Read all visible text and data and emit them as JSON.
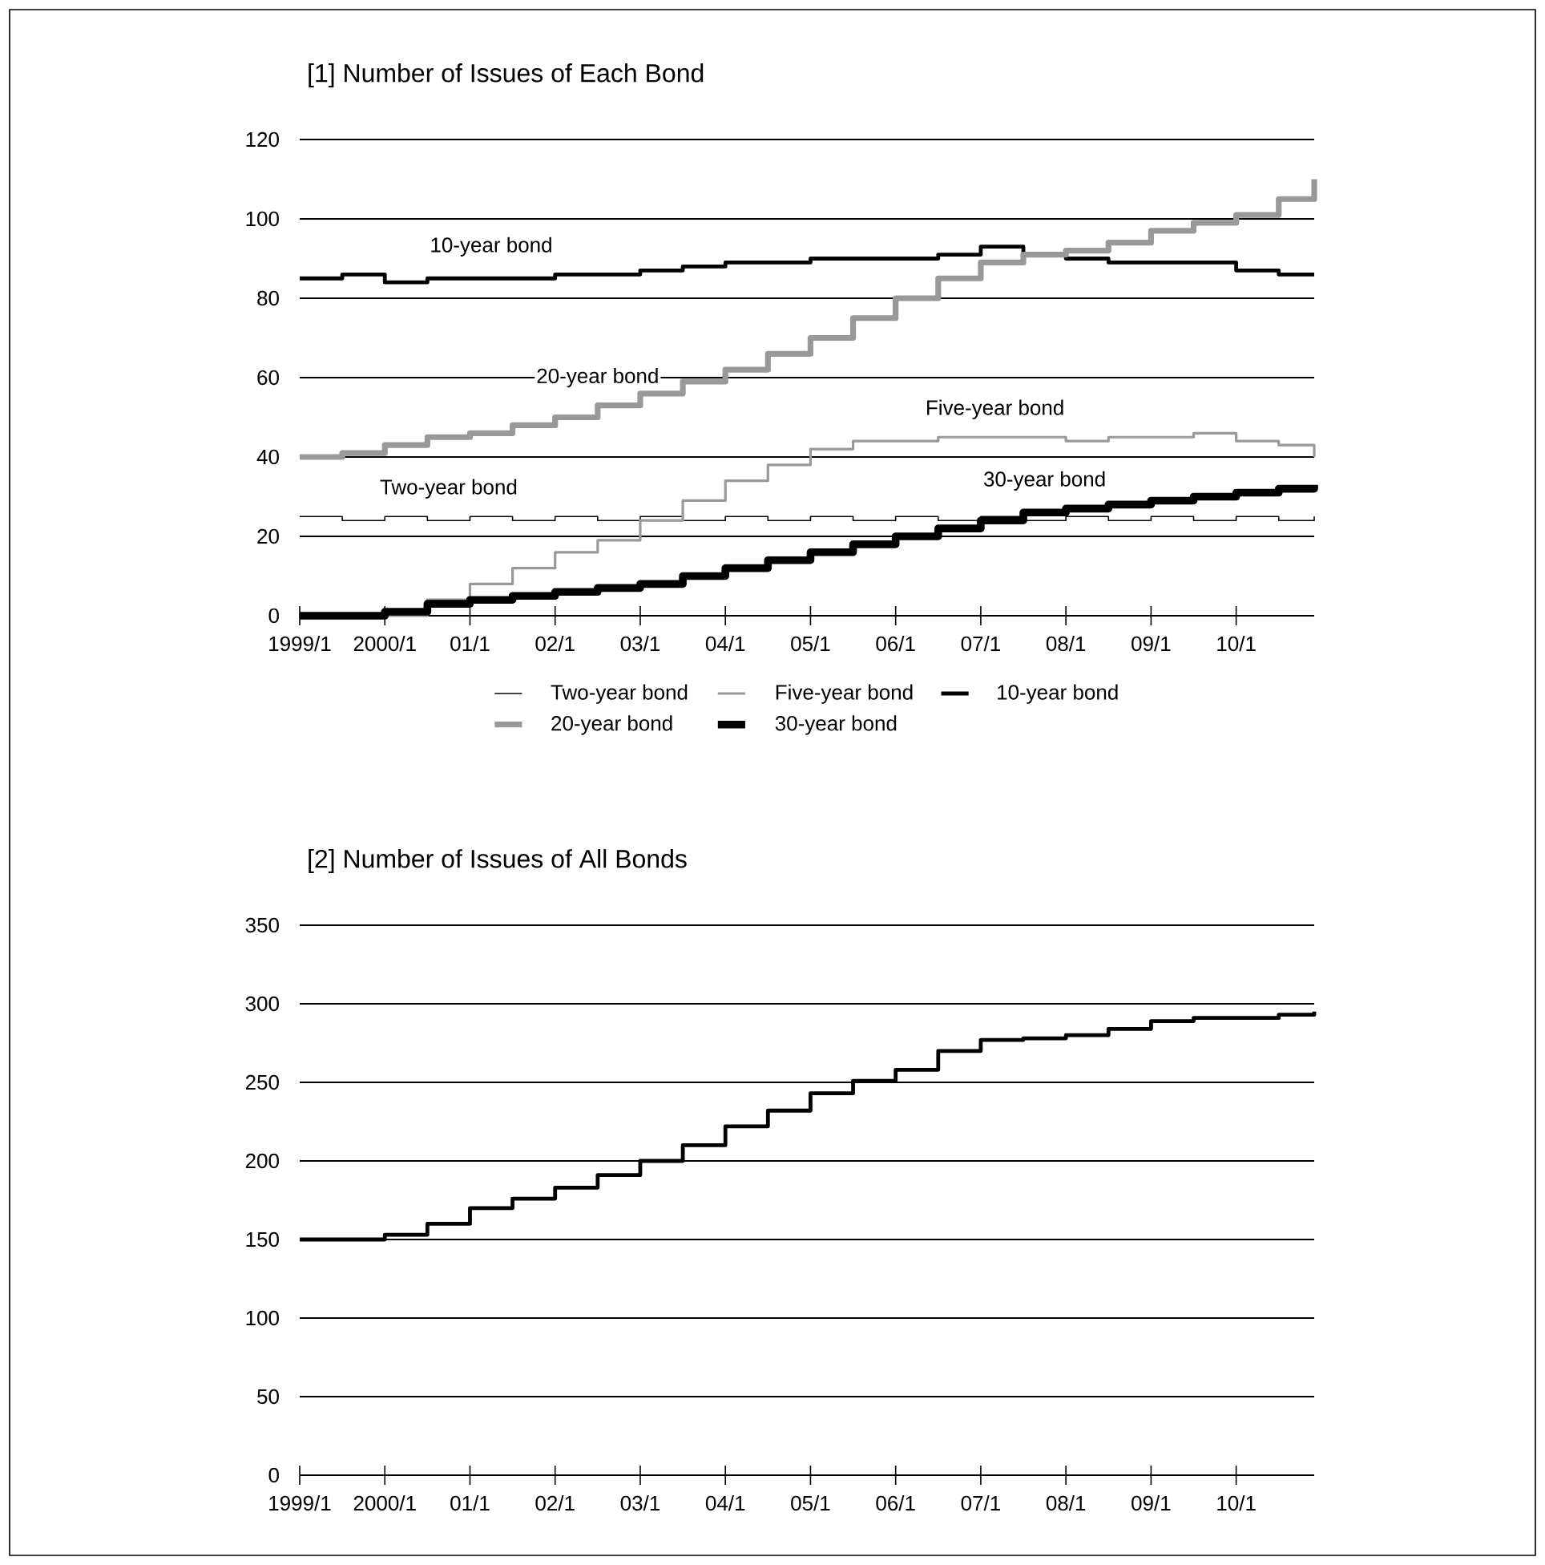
{
  "chart_data": [
    {
      "type": "step",
      "title": "[1] Number of Issues of Each Bond",
      "x": [
        "1999-01",
        "1999-07",
        "2000-01",
        "2000-07",
        "2001-01",
        "2001-07",
        "2002-01",
        "2002-07",
        "2003-01",
        "2003-07",
        "2004-01",
        "2004-07",
        "2005-01",
        "2005-07",
        "2006-01",
        "2006-07",
        "2007-01",
        "2007-07",
        "2008-01",
        "2008-07",
        "2009-01",
        "2009-07",
        "2010-01",
        "2010-07",
        "2010-12"
      ],
      "series": [
        {
          "name": "Two-year bond",
          "color": "#000000",
          "values": [
            25,
            24,
            25,
            24,
            25,
            24,
            25,
            24,
            25,
            24,
            25,
            24,
            25,
            24,
            25,
            24,
            25,
            24,
            25,
            24,
            25,
            24,
            25,
            24,
            25
          ]
        },
        {
          "name": "Five-year bond",
          "color": "#999999",
          "values": [
            0,
            0,
            0,
            4,
            8,
            12,
            16,
            19,
            24,
            29,
            34,
            38,
            42,
            44,
            44,
            45,
            45,
            45,
            44,
            45,
            45,
            46,
            44,
            43,
            40
          ]
        },
        {
          "name": "10-year bond",
          "color": "#000000",
          "values": [
            85,
            86,
            84,
            85,
            85,
            85,
            86,
            86,
            87,
            88,
            89,
            89,
            90,
            90,
            90,
            91,
            93,
            91,
            90,
            89,
            89,
            89,
            87,
            86,
            86
          ]
        },
        {
          "name": "20-year bond",
          "color": "#999999",
          "values": [
            40,
            41,
            43,
            45,
            46,
            48,
            50,
            53,
            56,
            59,
            62,
            66,
            70,
            75,
            80,
            85,
            89,
            91,
            92,
            94,
            97,
            99,
            101,
            105,
            110
          ]
        },
        {
          "name": "30-year bond",
          "color": "#000000",
          "values": [
            0,
            0,
            1,
            3,
            4,
            5,
            6,
            7,
            8,
            10,
            12,
            14,
            16,
            18,
            20,
            22,
            24,
            26,
            27,
            28,
            29,
            30,
            31,
            32,
            33
          ]
        }
      ],
      "xlim": [
        "1999-01",
        "2010-12"
      ],
      "xticks": [
        {
          "value": "1999-01",
          "label": "1999/1"
        },
        {
          "value": "2000-01",
          "label": "2000/1"
        },
        {
          "value": "2001-01",
          "label": "01/1"
        },
        {
          "value": "2002-01",
          "label": "02/1"
        },
        {
          "value": "2003-01",
          "label": "03/1"
        },
        {
          "value": "2004-01",
          "label": "04/1"
        },
        {
          "value": "2005-01",
          "label": "05/1"
        },
        {
          "value": "2006-01",
          "label": "06/1"
        },
        {
          "value": "2007-01",
          "label": "07/1"
        },
        {
          "value": "2008-01",
          "label": "08/1"
        },
        {
          "value": "2009-01",
          "label": "09/1"
        },
        {
          "value": "2010-01",
          "label": "10/1"
        }
      ],
      "ylim": [
        0,
        120
      ],
      "yticks": [
        0,
        20,
        40,
        60,
        80,
        100,
        120
      ],
      "grid": "y",
      "legend": "bottom",
      "annotations": [
        {
          "text": "10-year bond",
          "x": "2001-04",
          "y": 86
        },
        {
          "text": "20-year bond",
          "x": "2002-07",
          "y": 53
        },
        {
          "text": "Two-year bond",
          "x": "2000-10",
          "y": 25
        },
        {
          "text": "Five-year bond",
          "x": "2007-03",
          "y": 45
        },
        {
          "text": "30-year bond",
          "x": "2007-10",
          "y": 27
        }
      ]
    },
    {
      "type": "step",
      "title": "[2] Number of Issues of All Bonds",
      "x": [
        "1999-01",
        "1999-07",
        "2000-01",
        "2000-07",
        "2001-01",
        "2001-07",
        "2002-01",
        "2002-07",
        "2003-01",
        "2003-07",
        "2004-01",
        "2004-07",
        "2005-01",
        "2005-07",
        "2006-01",
        "2006-07",
        "2007-01",
        "2007-07",
        "2008-01",
        "2008-07",
        "2009-01",
        "2009-07",
        "2010-01",
        "2010-07",
        "2010-12"
      ],
      "series": [
        {
          "color": "#000000",
          "values": [
            150,
            150,
            153,
            160,
            170,
            176,
            183,
            191,
            200,
            210,
            222,
            232,
            243,
            251,
            258,
            270,
            277,
            278,
            280,
            284,
            289,
            291,
            291,
            293,
            295
          ]
        }
      ],
      "xlim": [
        "1999-01",
        "2010-12"
      ],
      "xticks": [
        {
          "value": "1999-01",
          "label": "1999/1"
        },
        {
          "value": "2000-01",
          "label": "2000/1"
        },
        {
          "value": "2001-01",
          "label": "01/1"
        },
        {
          "value": "2002-01",
          "label": "02/1"
        },
        {
          "value": "2003-01",
          "label": "03/1"
        },
        {
          "value": "2004-01",
          "label": "04/1"
        },
        {
          "value": "2005-01",
          "label": "05/1"
        },
        {
          "value": "2006-01",
          "label": "06/1"
        },
        {
          "value": "2007-01",
          "label": "07/1"
        },
        {
          "value": "2008-01",
          "label": "08/1"
        },
        {
          "value": "2009-01",
          "label": "09/1"
        },
        {
          "value": "2010-01",
          "label": "10/1"
        }
      ],
      "ylim": [
        0,
        350
      ],
      "yticks": [
        0,
        50,
        100,
        150,
        200,
        250,
        300,
        350
      ],
      "grid": "y"
    }
  ]
}
